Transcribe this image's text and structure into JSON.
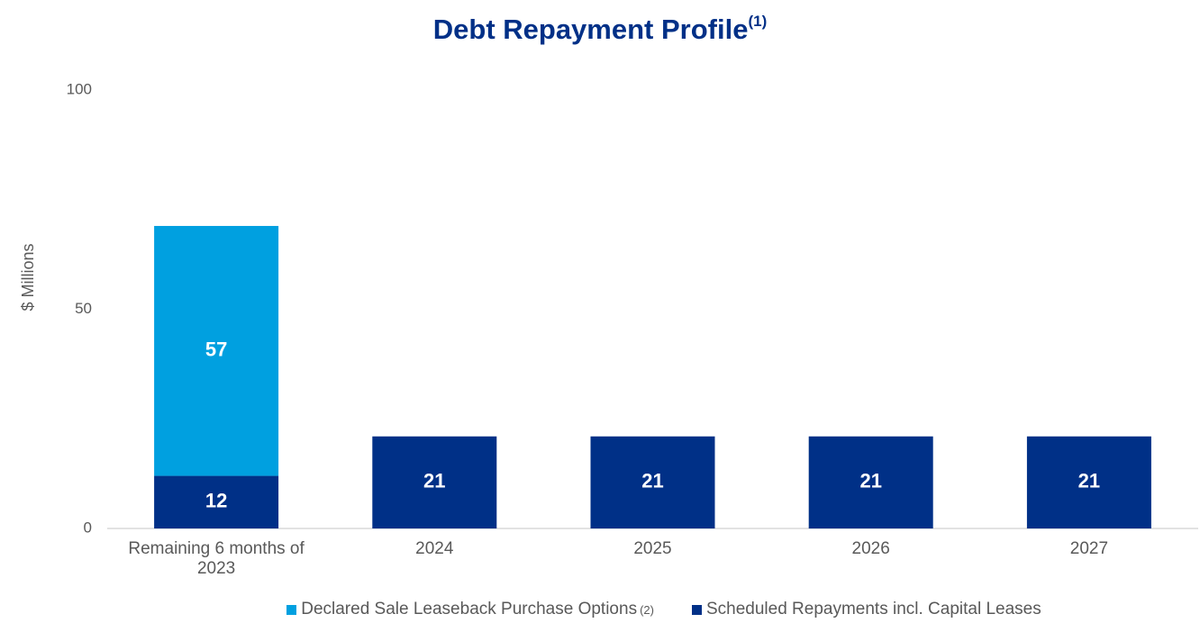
{
  "chart_data": {
    "type": "stacked_bar",
    "title": "Debt Repayment Profile",
    "title_note": "(1)",
    "y_label": "$ Millions",
    "categories": [
      "Remaining 6 months of 2023",
      "2024",
      "2025",
      "2026",
      "2027"
    ],
    "series": [
      {
        "name": "Scheduled Repayments incl. Capital Leases",
        "color": "#003087",
        "values": [
          12,
          21,
          21,
          21,
          21
        ]
      },
      {
        "name": "Declared Sale Leaseback Purchase Options",
        "note": "(2)",
        "color": "#00a0e0",
        "values": [
          57,
          null,
          null,
          null,
          null
        ]
      }
    ],
    "ylim": [
      0,
      100
    ],
    "yticks": [
      0,
      50,
      100
    ],
    "grid": false
  }
}
